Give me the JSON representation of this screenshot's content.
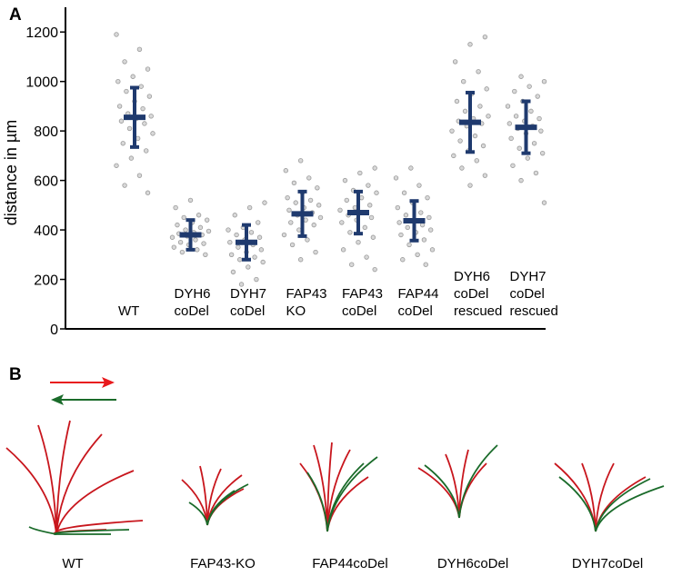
{
  "chart_data": {
    "type": "scatter",
    "panel_label": "A",
    "y_label": "distance in µm",
    "categories": [
      "WT",
      "DYH6 coDel",
      "DYH7 coDel",
      "FAP43 KO",
      "FAP43 coDel",
      "FAP44 coDel",
      "DYH6 coDel rescued",
      "DYH7 coDel rescued"
    ],
    "means": [
      855,
      380,
      350,
      465,
      470,
      437,
      835,
      815
    ],
    "sd": [
      120,
      60,
      70,
      90,
      85,
      80,
      120,
      105
    ],
    "points": [
      [
        1190,
        1130,
        1080,
        1050,
        1020,
        1000,
        980,
        960,
        940,
        920,
        900,
        890,
        870,
        860,
        850,
        840,
        830,
        810,
        790,
        770,
        750,
        720,
        690,
        660,
        620,
        580,
        550
      ],
      [
        520,
        490,
        460,
        450,
        440,
        430,
        420,
        410,
        400,
        395,
        390,
        385,
        380,
        375,
        370,
        360,
        350,
        345,
        340,
        330,
        320,
        310,
        300
      ],
      [
        510,
        490,
        460,
        430,
        410,
        400,
        390,
        380,
        370,
        360,
        350,
        340,
        330,
        320,
        310,
        300,
        290,
        280,
        270,
        250,
        230,
        200,
        180
      ],
      [
        680,
        640,
        610,
        590,
        570,
        550,
        530,
        520,
        510,
        500,
        490,
        480,
        470,
        460,
        450,
        440,
        430,
        420,
        400,
        380,
        360,
        340,
        310,
        280
      ],
      [
        650,
        630,
        600,
        580,
        560,
        550,
        530,
        520,
        500,
        490,
        480,
        470,
        460,
        450,
        440,
        430,
        410,
        390,
        370,
        350,
        320,
        290,
        260,
        240
      ],
      [
        650,
        610,
        580,
        550,
        530,
        510,
        490,
        470,
        460,
        450,
        440,
        430,
        420,
        410,
        400,
        390,
        380,
        360,
        340,
        320,
        300,
        280,
        260
      ],
      [
        1180,
        1150,
        1080,
        1040,
        1000,
        970,
        950,
        920,
        900,
        880,
        860,
        850,
        840,
        830,
        820,
        800,
        780,
        760,
        740,
        720,
        700,
        680,
        650,
        620,
        580
      ],
      [
        1020,
        1000,
        980,
        960,
        940,
        920,
        900,
        880,
        860,
        850,
        840,
        830,
        820,
        810,
        800,
        790,
        770,
        750,
        730,
        710,
        690,
        660,
        630,
        600,
        510
      ]
    ],
    "point_color": "#9a9a9a",
    "bar_color": "#1f3a6e",
    "ylim": [
      0,
      1300
    ],
    "yticks": [
      0,
      200,
      400,
      600,
      800,
      1000,
      1200
    ]
  },
  "panel_b": {
    "label": "B",
    "waveforms": [
      "WT",
      "FAP43-KO",
      "FAP44coDel",
      "DYH6coDel",
      "DYH7coDel"
    ]
  }
}
